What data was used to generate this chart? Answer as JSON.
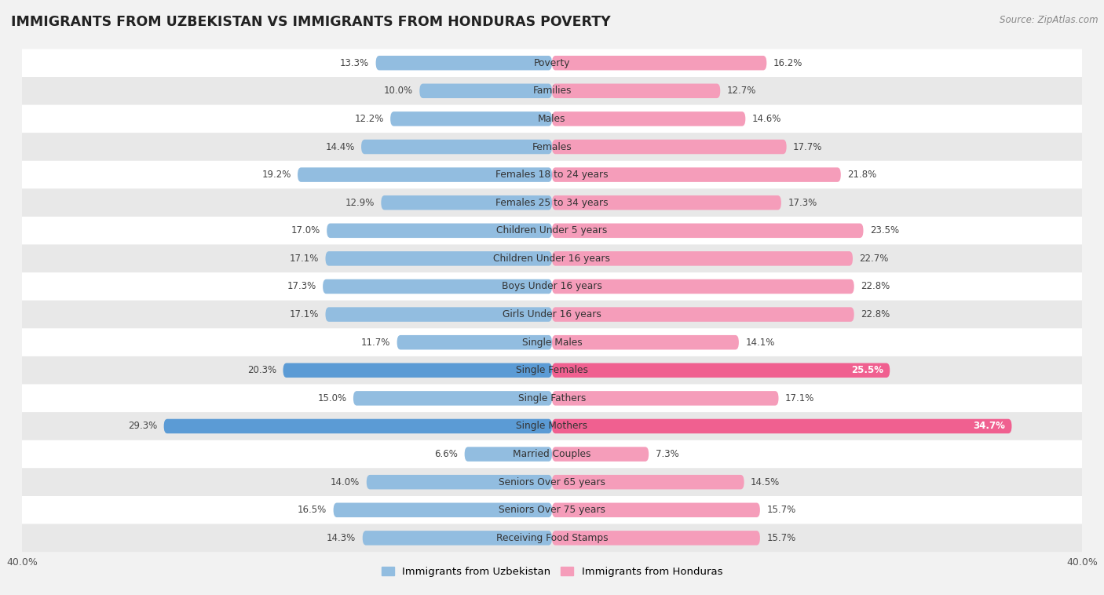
{
  "title": "IMMIGRANTS FROM UZBEKISTAN VS IMMIGRANTS FROM HONDURAS POVERTY",
  "source": "Source: ZipAtlas.com",
  "categories": [
    "Poverty",
    "Families",
    "Males",
    "Females",
    "Females 18 to 24 years",
    "Females 25 to 34 years",
    "Children Under 5 years",
    "Children Under 16 years",
    "Boys Under 16 years",
    "Girls Under 16 years",
    "Single Males",
    "Single Females",
    "Single Fathers",
    "Single Mothers",
    "Married Couples",
    "Seniors Over 65 years",
    "Seniors Over 75 years",
    "Receiving Food Stamps"
  ],
  "uzbekistan_values": [
    13.3,
    10.0,
    12.2,
    14.4,
    19.2,
    12.9,
    17.0,
    17.1,
    17.3,
    17.1,
    11.7,
    20.3,
    15.0,
    29.3,
    6.6,
    14.0,
    16.5,
    14.3
  ],
  "honduras_values": [
    16.2,
    12.7,
    14.6,
    17.7,
    21.8,
    17.3,
    23.5,
    22.7,
    22.8,
    22.8,
    14.1,
    25.5,
    17.1,
    34.7,
    7.3,
    14.5,
    15.7,
    15.7
  ],
  "uzbekistan_color": "#92bde0",
  "honduras_color": "#f59dba",
  "uzbekistan_highlight_color": "#5b9bd5",
  "honduras_highlight_color": "#f06090",
  "axis_limit": 40.0,
  "bar_height": 0.52,
  "bg_color": "#f2f2f2",
  "row_color_odd": "#ffffff",
  "row_color_even": "#e8e8e8",
  "label_fontsize": 8.8,
  "value_fontsize": 8.5,
  "title_fontsize": 12.5,
  "source_fontsize": 8.5,
  "legend_label_uzbekistan": "Immigrants from Uzbekistan",
  "legend_label_honduras": "Immigrants from Honduras",
  "highlight_indices": [
    11,
    13
  ]
}
